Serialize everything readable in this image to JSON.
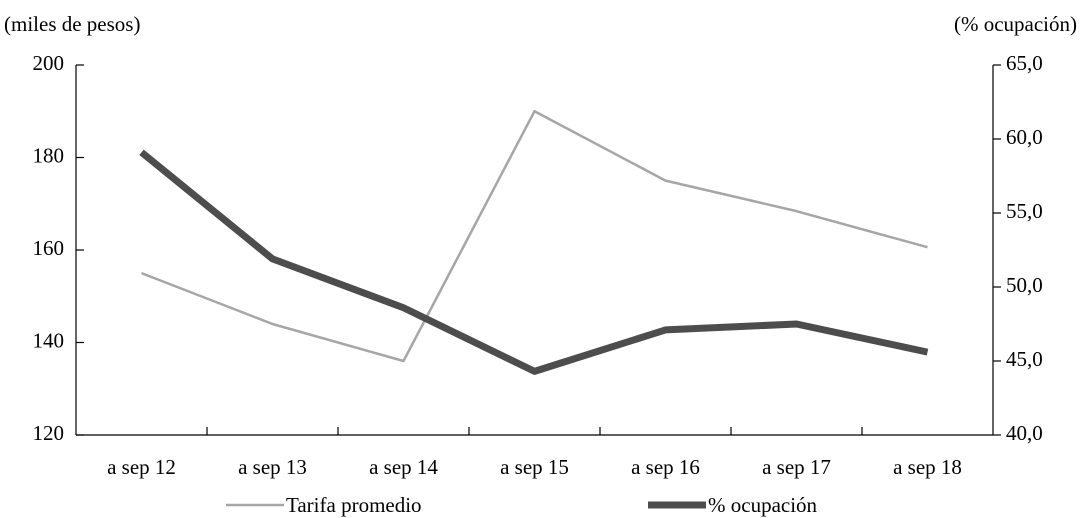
{
  "chart_data": {
    "type": "line",
    "y_label": "(miles de pesos)",
    "y2_label": "(% ocupación)",
    "categories": [
      "a sep 12",
      "a sep 13",
      "a sep 14",
      "a sep 15",
      "a sep 16",
      "a sep 17",
      "a sep 18"
    ],
    "series": [
      {
        "name": "Tarifa promedio",
        "color": "#a6a6a6",
        "values": [
          155,
          144,
          136,
          190,
          175,
          168.4,
          160.6
        ]
      },
      {
        "name": "% ocupación",
        "color": "#4d4d4d",
        "axis": "y2",
        "values": [
          59.1,
          51.9,
          48.6,
          44.3,
          47.1,
          47.5,
          45.6
        ]
      }
    ],
    "ylim": [
      120,
      200
    ],
    "yticks": [
      120,
      140,
      160,
      180,
      200
    ],
    "y2lim": [
      40,
      65
    ],
    "y2ticks": [
      {
        "value": 40,
        "label": "40,0"
      },
      {
        "value": 45,
        "label": "45,0"
      },
      {
        "value": 50,
        "label": "50,0"
      },
      {
        "value": 55,
        "label": "55,0"
      },
      {
        "value": 60,
        "label": "60,0"
      },
      {
        "value": 65,
        "label": "65,0"
      }
    ],
    "grid": false,
    "legend": "bottom"
  }
}
